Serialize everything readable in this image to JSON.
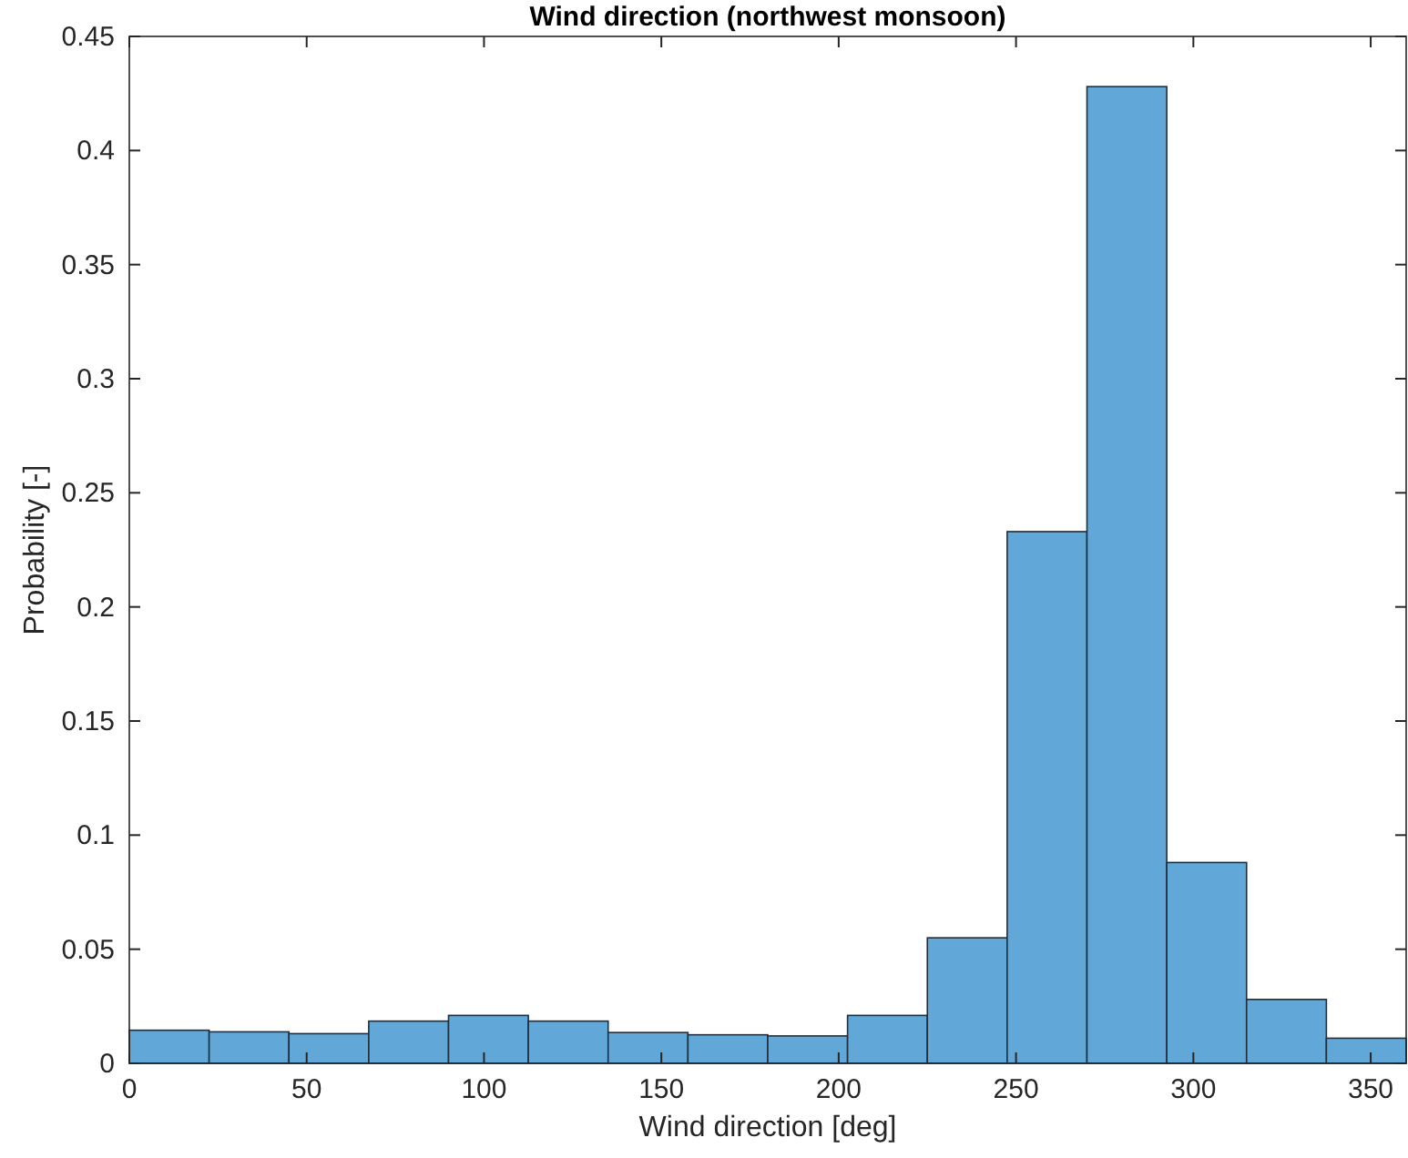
{
  "chart_data": {
    "type": "histogram",
    "title": "Wind direction (northwest monsoon)",
    "xlabel": "Wind direction [deg]",
    "ylabel": "Probability [-]",
    "bins": [
      0,
      22.5,
      45,
      67.5,
      90,
      112.5,
      135,
      157.5,
      180,
      202.5,
      225,
      247.5,
      270,
      292.5,
      315,
      337.5,
      360
    ],
    "values": [
      0.0145,
      0.0138,
      0.013,
      0.0185,
      0.021,
      0.0185,
      0.0135,
      0.0125,
      0.012,
      0.021,
      0.055,
      0.233,
      0.428,
      0.088,
      0.028,
      0.011
    ],
    "color": "#61a7d8",
    "xlim": [
      0,
      360
    ],
    "xticks": [
      0,
      50,
      100,
      150,
      200,
      250,
      300,
      350
    ],
    "ylim": [
      0,
      0.45
    ],
    "yticks": [
      0,
      0.05,
      0.1,
      0.15,
      0.2,
      0.25,
      0.3,
      0.35,
      0.4,
      0.45
    ],
    "grid": false
  }
}
